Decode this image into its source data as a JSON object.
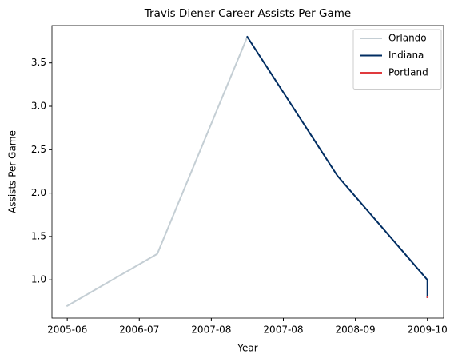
{
  "chart_data": {
    "type": "line",
    "title": "Travis Diener Career Assists Per Game",
    "xlabel": "Year",
    "ylabel": "Assists Per Game",
    "series": [
      {
        "name": "Orlando",
        "color": "#c4ced4",
        "x": [
          0,
          1,
          2
        ],
        "values": [
          0.7,
          1.3,
          3.8
        ]
      },
      {
        "name": "Indiana",
        "color": "#002d62",
        "x": [
          2,
          3,
          4,
          4
        ],
        "values": [
          3.8,
          2.2,
          1.0,
          0.8
        ]
      },
      {
        "name": "Portland",
        "color": "#e03a3e",
        "x": [
          4
        ],
        "values": [
          0.8
        ]
      }
    ],
    "xlim": [
      -0.17,
      4.18
    ],
    "xticks": [
      {
        "value": 0,
        "label": "2005-06"
      },
      {
        "value": 0.8,
        "label": "2006-07"
      },
      {
        "value": 1.6,
        "label": "2007-08"
      },
      {
        "value": 2.4,
        "label": "2007-08"
      },
      {
        "value": 3.2,
        "label": "2008-09"
      },
      {
        "value": 4,
        "label": "2009-10"
      }
    ],
    "ylim": [
      0.56,
      3.93
    ],
    "yticks": [
      {
        "value": 1,
        "label": "1.0"
      },
      {
        "value": 1.5,
        "label": "1.5"
      },
      {
        "value": 2,
        "label": "2.0"
      },
      {
        "value": 2.5,
        "label": "2.5"
      },
      {
        "value": 3,
        "label": "3.0"
      },
      {
        "value": 3.5,
        "label": "3.5"
      }
    ],
    "grid": false,
    "legend": "upper right"
  }
}
